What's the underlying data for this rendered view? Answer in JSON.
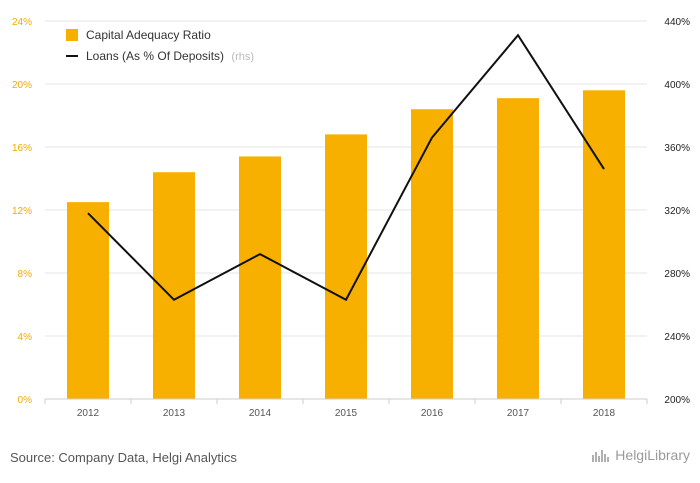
{
  "chart_data": {
    "type": "bar",
    "categories": [
      "2012",
      "2013",
      "2014",
      "2015",
      "2016",
      "2017",
      "2018"
    ],
    "series": [
      {
        "name": "Capital Adequacy Ratio",
        "type": "bar",
        "axis": "left",
        "color": "#f8b000",
        "values": [
          12.5,
          14.4,
          15.4,
          16.8,
          18.4,
          19.1,
          19.6
        ]
      },
      {
        "name": "Loans (As % Of Deposits)",
        "suffix": "(rhs)",
        "type": "line",
        "axis": "right",
        "color": "#111111",
        "values": [
          318,
          263,
          292,
          263,
          366,
          431,
          346
        ]
      }
    ],
    "left_axis": {
      "ylim": [
        0,
        24
      ],
      "ticks": [
        0,
        4,
        8,
        12,
        16,
        20,
        24
      ],
      "tick_labels": [
        "0%",
        "4%",
        "8%",
        "12%",
        "16%",
        "20%",
        "24%"
      ],
      "color": "#f2a900"
    },
    "right_axis": {
      "ylim": [
        200,
        440
      ],
      "ticks": [
        200,
        240,
        280,
        320,
        360,
        400,
        440
      ],
      "tick_labels": [
        "200%",
        "240%",
        "280%",
        "320%",
        "360%",
        "400%",
        "440%"
      ]
    },
    "legend_position": "top-left",
    "grid": true
  },
  "footer": {
    "source": "Source: Company Data, Helgi Analytics",
    "brand": "HelgiLibrary"
  }
}
